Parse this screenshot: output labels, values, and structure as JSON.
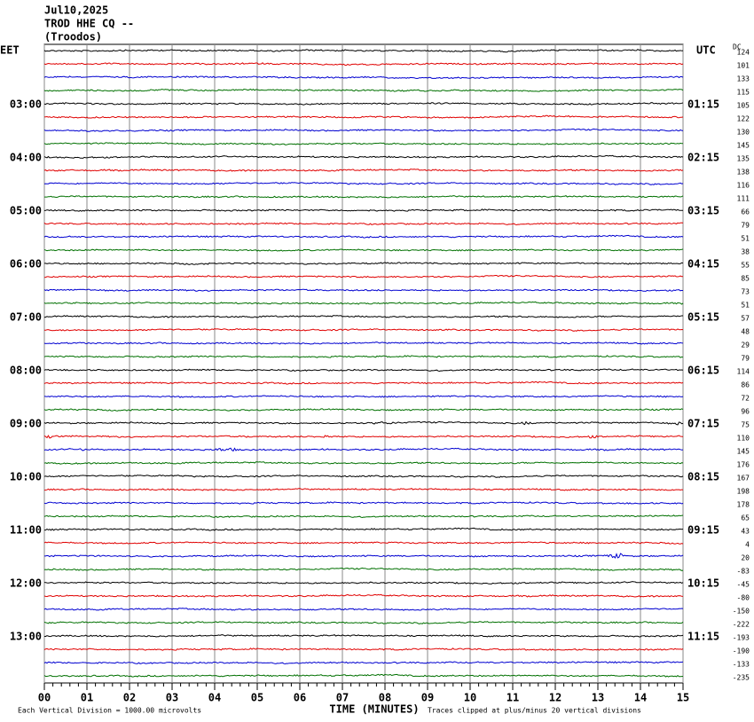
{
  "header": {
    "date": "Jul10,2025",
    "station": "TROD HHE CQ --",
    "location": "(Troodos)"
  },
  "left_axis": {
    "title": "EET",
    "labels": [
      "03:00",
      "04:00",
      "05:00",
      "06:00",
      "07:00",
      "08:00",
      "09:00",
      "10:00",
      "11:00",
      "12:00",
      "13:00"
    ]
  },
  "right_axis": {
    "title": "UTC",
    "labels": [
      "01:15",
      "02:15",
      "03:15",
      "04:15",
      "05:15",
      "06:15",
      "07:15",
      "08:15",
      "09:15",
      "10:15",
      "11:15"
    ]
  },
  "dc": {
    "title": "DC",
    "values": [
      124,
      101,
      133,
      115,
      105,
      122,
      130,
      145,
      135,
      138,
      116,
      111,
      66,
      79,
      51,
      38,
      55,
      85,
      73,
      51,
      57,
      48,
      29,
      79,
      114,
      86,
      72,
      96,
      75,
      110,
      145,
      176,
      167,
      198,
      178,
      65,
      43,
      4,
      20,
      -83,
      -45,
      -80,
      -150,
      -222,
      -193,
      -190,
      -133,
      -235
    ]
  },
  "trace_colors": [
    "#000000",
    "#e00000",
    "#0000d0",
    "#007000"
  ],
  "x_axis": {
    "title": "TIME (MINUTES)",
    "labels": [
      "00",
      "01",
      "02",
      "03",
      "04",
      "05",
      "06",
      "07",
      "08",
      "09",
      "10",
      "11",
      "12",
      "13",
      "14",
      "15"
    ]
  },
  "footer": {
    "scale": "Each Vertical Division = 1000.00 microvolts",
    "clip": "Traces clipped at plus/minus 20 vertical divisions"
  }
}
